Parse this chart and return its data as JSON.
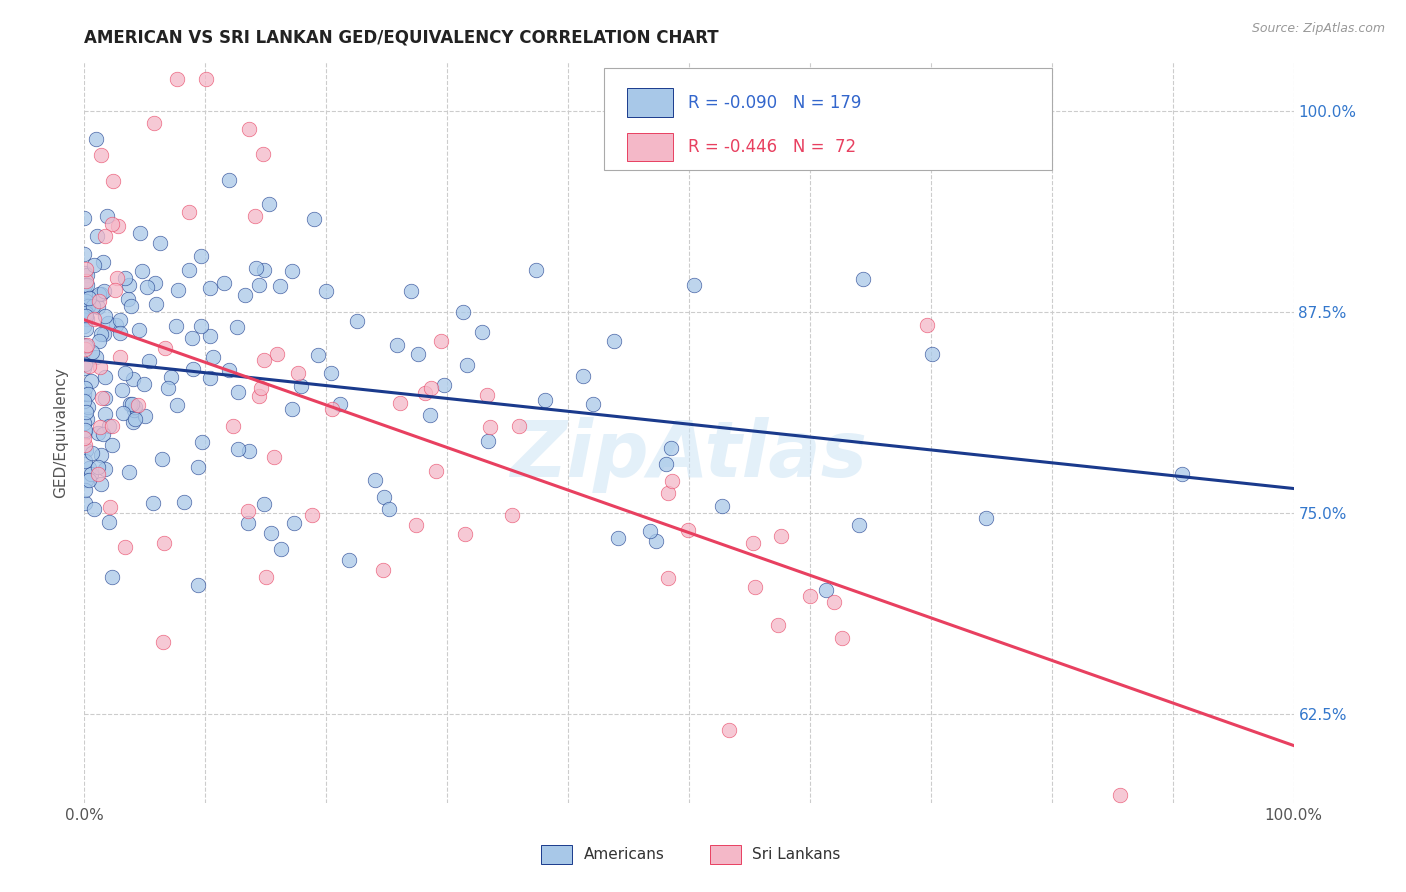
{
  "title": "AMERICAN VS SRI LANKAN GED/EQUIVALENCY CORRELATION CHART",
  "source": "Source: ZipAtlas.com",
  "ylabel": "GED/Equivalency",
  "y_tick_labels": [
    "62.5%",
    "75.0%",
    "87.5%",
    "100.0%"
  ],
  "legend_label_1": "Americans",
  "legend_label_2": "Sri Lankans",
  "color_american": "#a8c8e8",
  "color_srilankan": "#f4b8c8",
  "color_line_american": "#1a3a8c",
  "color_line_srilankan": "#e84060",
  "watermark": "ZipAtlas",
  "background_color": "#ffffff",
  "grid_color": "#cccccc",
  "xlim": [
    0.0,
    1.0
  ],
  "ylim": [
    0.57,
    1.03
  ],
  "y_ticks": [
    0.625,
    0.75,
    0.875,
    1.0
  ],
  "title_fontsize": 12,
  "axis_label_fontsize": 11,
  "tick_fontsize": 11
}
